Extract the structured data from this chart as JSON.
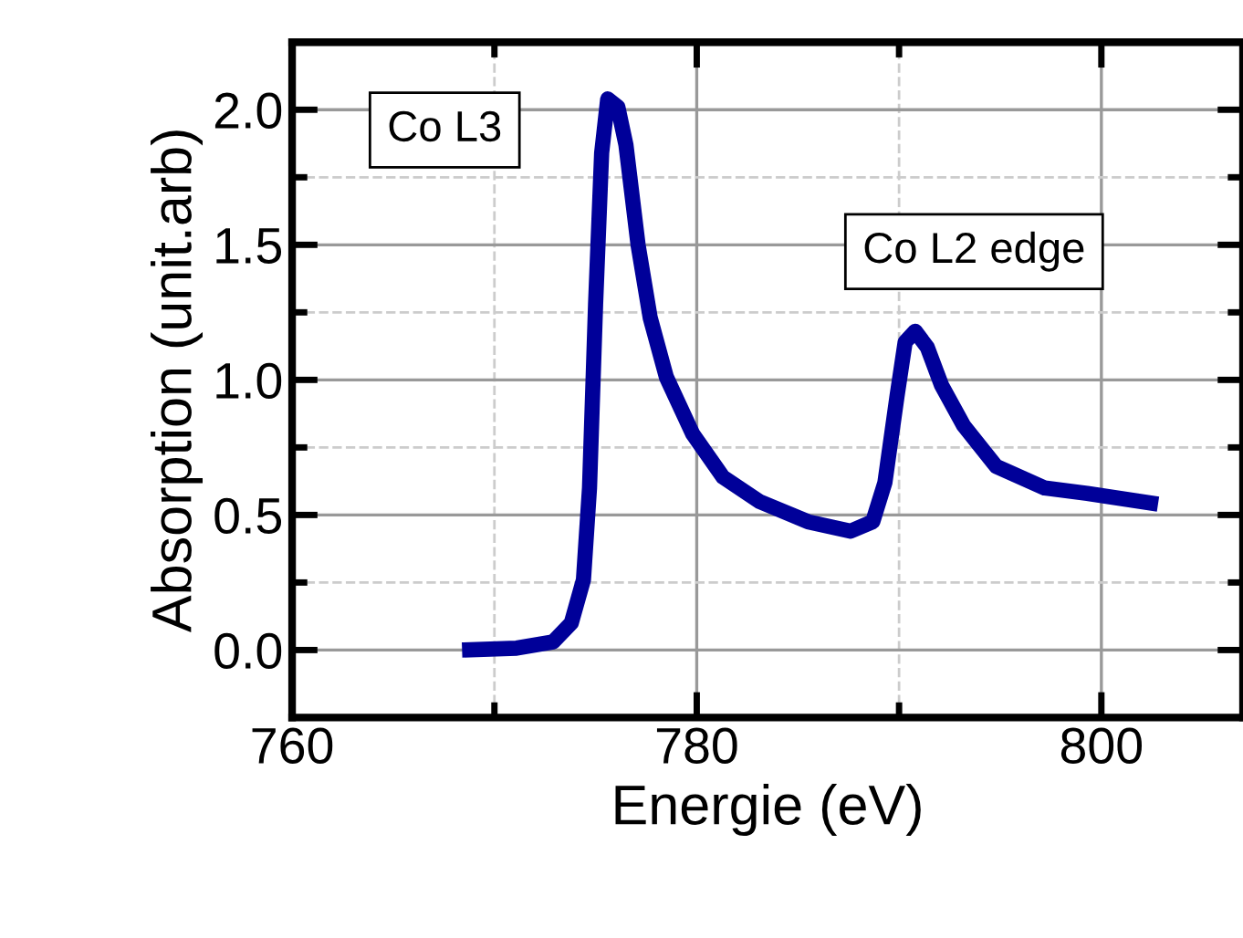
{
  "chart_data": {
    "type": "line",
    "xlabel": "Energie (eV)",
    "ylabel": "Absorption (unit.arb)",
    "xlim": [
      760,
      807
    ],
    "xticks": [
      760,
      780,
      800
    ],
    "ylim": [
      -0.25,
      2.25
    ],
    "yticks": [
      {
        "value": 0,
        "label": "0.0"
      },
      {
        "value": 0.5,
        "label": "0.5"
      },
      {
        "value": 1,
        "label": "1.0"
      },
      {
        "value": 1.5,
        "label": "1.5"
      },
      {
        "value": 2,
        "label": "2.0"
      }
    ],
    "grid": true,
    "marker": "none",
    "line_style": "solid",
    "annotations": [
      "Co L3",
      "Co L2 edge"
    ],
    "series": [
      {
        "color": "#000099",
        "x": [
          768.4,
          771.1,
          772.9,
          773.8,
          774.4,
          774.7,
          775.0,
          775.3,
          775.6,
          776.1,
          776.5,
          777.1,
          777.7,
          778.5,
          779.8,
          781.3,
          783.1,
          785.5,
          787.6,
          788.7,
          789.3,
          789.9,
          790.3,
          790.8,
          791.4,
          792.1,
          793.2,
          794.8,
          797.2,
          799.3,
          802.8
        ],
        "values": [
          0.0,
          0.007,
          0.03,
          0.1,
          0.26,
          0.6,
          1.28,
          1.84,
          2.04,
          2.01,
          1.87,
          1.5,
          1.23,
          1.01,
          0.8,
          0.64,
          0.55,
          0.475,
          0.44,
          0.475,
          0.62,
          0.94,
          1.14,
          1.18,
          1.12,
          0.98,
          0.83,
          0.68,
          0.6,
          0.58,
          0.54
        ]
      }
    ]
  }
}
